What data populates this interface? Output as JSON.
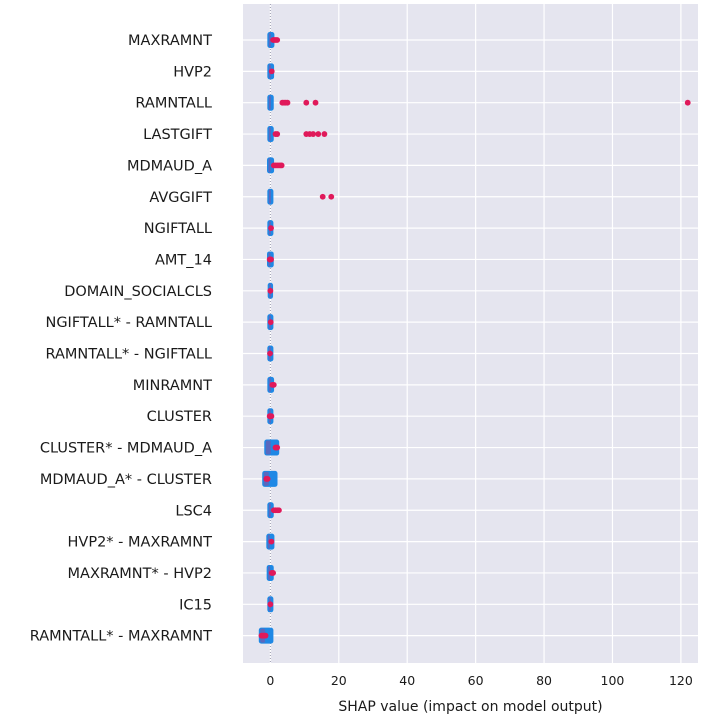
{
  "chart_data": {
    "type": "scatter",
    "subtype": "shap-beeswarm",
    "xlabel": "SHAP value (impact on model output)",
    "xlim": [
      -8,
      125
    ],
    "xticks": [
      0,
      20,
      40,
      60,
      80,
      100,
      120
    ],
    "grid": true,
    "legend": "none",
    "colors": {
      "background": "#e5e5ef",
      "grid": "#ffffff",
      "low": "#1e88e5",
      "high": "#e0195a",
      "mid": "#8a4f9e",
      "zero_line": "#9a9ab0"
    },
    "features": [
      {
        "name": "MAXRAMNT",
        "min": -0.3,
        "max": 0.6,
        "high_points": [
          0.8,
          1.2,
          1.6,
          2.0
        ]
      },
      {
        "name": "HVP2",
        "min": -0.3,
        "max": 0.5,
        "high_points": [
          0.4
        ]
      },
      {
        "name": "RAMNTALL",
        "min": -0.3,
        "max": 0.4,
        "high_points": [
          3.5,
          4.0,
          4.5,
          5.0,
          10.5,
          13.2,
          122
        ]
      },
      {
        "name": "LASTGIFT",
        "min": -0.3,
        "max": 0.4,
        "high_points": [
          1.5,
          2.0,
          10.5,
          11.5,
          12.5,
          14.0,
          15.8
        ]
      },
      {
        "name": "MDMAUD_A",
        "min": -0.4,
        "max": 0.5,
        "high_points": [
          1.0,
          1.6,
          2.2,
          2.8,
          3.3
        ]
      },
      {
        "name": "AVGGIFT",
        "min": -0.3,
        "max": 0.3,
        "high_points": [
          15.3,
          17.8
        ]
      },
      {
        "name": "NGIFTALL",
        "min": -0.3,
        "max": 0.3,
        "high_points": [
          0.2
        ]
      },
      {
        "name": "AMT_14",
        "min": -0.4,
        "max": 0.4,
        "high_points": [
          -0.2,
          0.2
        ]
      },
      {
        "name": "DOMAIN_SOCIALCLS",
        "min": -0.2,
        "max": 0.2,
        "high_points": [
          0.0
        ]
      },
      {
        "name": "NGIFTALL* - RAMNTALL",
        "min": -0.3,
        "max": 0.3,
        "high_points": [
          0.1
        ]
      },
      {
        "name": "RAMNTALL* - NGIFTALL",
        "min": -0.3,
        "max": 0.3,
        "high_points": [
          -0.1
        ]
      },
      {
        "name": "MINRAMNT",
        "min": -0.3,
        "max": 0.5,
        "high_points": [
          0.6,
          1.0
        ]
      },
      {
        "name": "CLUSTER",
        "min": -0.3,
        "max": 0.3,
        "high_points": [
          -0.2,
          0.3
        ]
      },
      {
        "name": "CLUSTER* - MDMAUD_A",
        "min": -1.2,
        "max": 2.0,
        "high_points": [
          1.5,
          2.0
        ]
      },
      {
        "name": "MDMAUD_A* - CLUSTER",
        "min": -1.8,
        "max": 1.5,
        "high_points": [
          -1.2,
          -0.8
        ]
      },
      {
        "name": "LSC4",
        "min": -0.3,
        "max": 0.4,
        "high_points": [
          1.0,
          1.5,
          2.0,
          2.5
        ]
      },
      {
        "name": "HVP2* - MAXRAMNT",
        "min": -0.6,
        "max": 0.6,
        "high_points": [
          0.3
        ]
      },
      {
        "name": "MAXRAMNT* - HVP2",
        "min": -0.5,
        "max": 0.4,
        "high_points": [
          0.4,
          0.8
        ]
      },
      {
        "name": "IC15",
        "min": -0.3,
        "max": 0.3,
        "high_points": [
          0.0
        ]
      },
      {
        "name": "RAMNTALL* - MAXRAMNT",
        "min": -2.8,
        "max": 0.3,
        "high_points": [
          -2.6,
          -2.2,
          -1.8,
          -1.4
        ]
      }
    ]
  }
}
